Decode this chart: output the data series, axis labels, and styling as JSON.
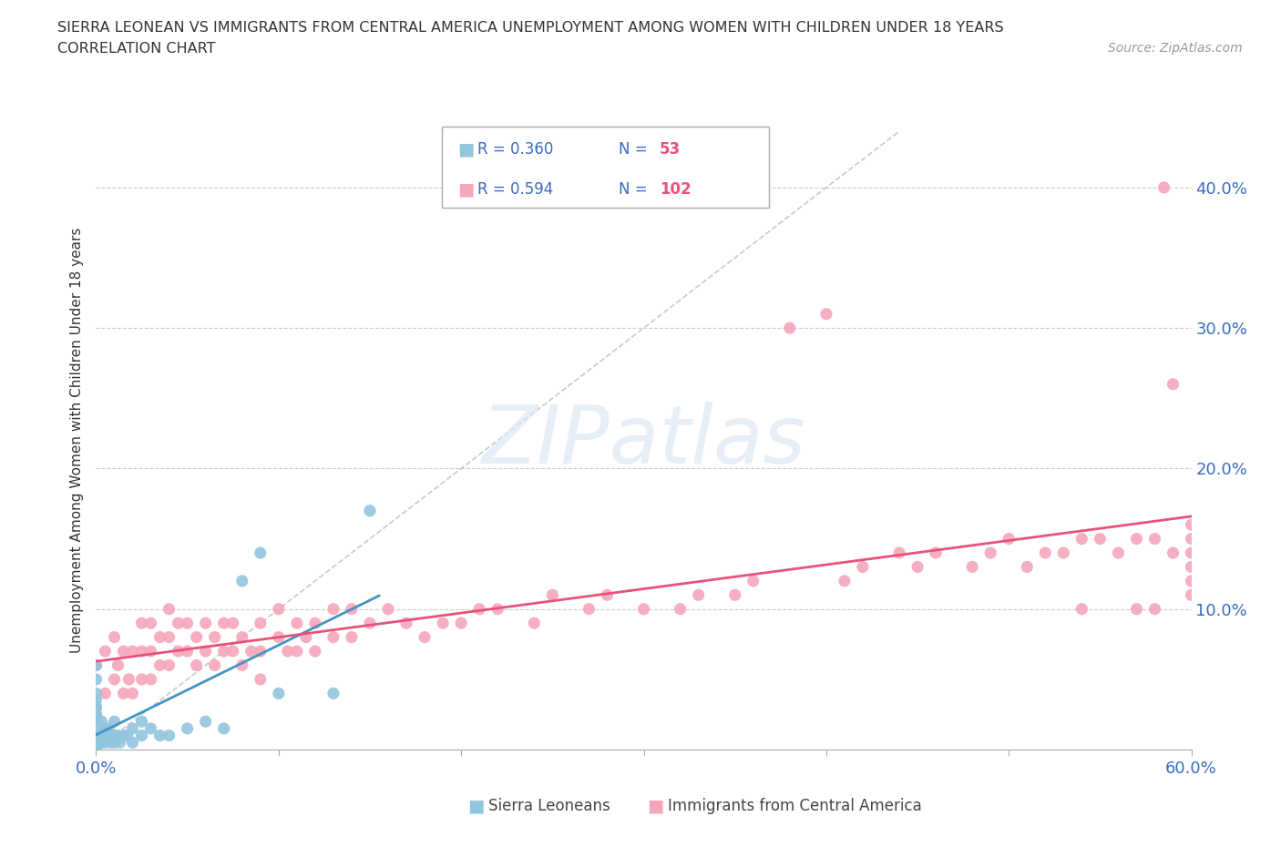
{
  "title_line1": "SIERRA LEONEAN VS IMMIGRANTS FROM CENTRAL AMERICA UNEMPLOYMENT AMONG WOMEN WITH CHILDREN UNDER 18 YEARS",
  "title_line2": "CORRELATION CHART",
  "source": "Source: ZipAtlas.com",
  "ylabel": "Unemployment Among Women with Children Under 18 years",
  "xlim": [
    0.0,
    0.6
  ],
  "ylim": [
    0.0,
    0.44
  ],
  "bg_color": "#ffffff",
  "watermark_text": "ZIPatlas",
  "color_sl": "#92c5de",
  "color_ca": "#f4a7b9",
  "trend_color_sl": "#4393c3",
  "trend_color_ca": "#e8527a",
  "diag_color": "#bbbbbb",
  "legend_r1_color": "#3a6bbf",
  "legend_n1_color": "#e8527a",
  "legend_r2_color": "#3a6bbf",
  "legend_n2_color": "#e8527a",
  "sl_x": [
    0.0,
    0.0,
    0.0,
    0.0,
    0.0,
    0.0,
    0.0,
    0.0,
    0.0,
    0.0,
    0.0,
    0.0,
    0.0,
    0.0,
    0.0,
    0.0,
    0.0,
    0.0,
    0.001,
    0.001,
    0.002,
    0.002,
    0.003,
    0.003,
    0.003,
    0.005,
    0.005,
    0.007,
    0.007,
    0.008,
    0.009,
    0.01,
    0.01,
    0.01,
    0.012,
    0.013,
    0.015,
    0.017,
    0.02,
    0.02,
    0.025,
    0.025,
    0.03,
    0.035,
    0.04,
    0.05,
    0.06,
    0.07,
    0.08,
    0.09,
    0.1,
    0.13,
    0.15
  ],
  "sl_y": [
    0.0,
    0.0,
    0.005,
    0.005,
    0.01,
    0.01,
    0.015,
    0.015,
    0.02,
    0.02,
    0.025,
    0.025,
    0.03,
    0.03,
    0.035,
    0.04,
    0.05,
    0.06,
    0.005,
    0.01,
    0.005,
    0.015,
    0.005,
    0.01,
    0.02,
    0.005,
    0.015,
    0.01,
    0.015,
    0.005,
    0.01,
    0.005,
    0.01,
    0.02,
    0.01,
    0.005,
    0.01,
    0.01,
    0.005,
    0.015,
    0.01,
    0.02,
    0.015,
    0.01,
    0.01,
    0.015,
    0.02,
    0.015,
    0.12,
    0.14,
    0.04,
    0.04,
    0.17
  ],
  "ca_x": [
    0.0,
    0.0,
    0.005,
    0.005,
    0.01,
    0.01,
    0.012,
    0.015,
    0.015,
    0.018,
    0.02,
    0.02,
    0.025,
    0.025,
    0.025,
    0.03,
    0.03,
    0.03,
    0.035,
    0.035,
    0.04,
    0.04,
    0.04,
    0.045,
    0.045,
    0.05,
    0.05,
    0.055,
    0.055,
    0.06,
    0.06,
    0.065,
    0.065,
    0.07,
    0.07,
    0.075,
    0.075,
    0.08,
    0.08,
    0.085,
    0.09,
    0.09,
    0.09,
    0.1,
    0.1,
    0.105,
    0.11,
    0.11,
    0.115,
    0.12,
    0.12,
    0.13,
    0.13,
    0.14,
    0.14,
    0.15,
    0.16,
    0.17,
    0.18,
    0.19,
    0.2,
    0.21,
    0.22,
    0.24,
    0.25,
    0.27,
    0.28,
    0.3,
    0.32,
    0.33,
    0.35,
    0.36,
    0.38,
    0.4,
    0.41,
    0.42,
    0.44,
    0.45,
    0.46,
    0.48,
    0.49,
    0.5,
    0.51,
    0.52,
    0.53,
    0.54,
    0.54,
    0.55,
    0.56,
    0.57,
    0.57,
    0.58,
    0.58,
    0.59,
    0.59,
    0.6,
    0.6,
    0.6,
    0.6,
    0.6,
    0.6,
    0.585
  ],
  "ca_y": [
    0.03,
    0.06,
    0.04,
    0.07,
    0.05,
    0.08,
    0.06,
    0.04,
    0.07,
    0.05,
    0.04,
    0.07,
    0.05,
    0.07,
    0.09,
    0.05,
    0.07,
    0.09,
    0.06,
    0.08,
    0.06,
    0.08,
    0.1,
    0.07,
    0.09,
    0.07,
    0.09,
    0.06,
    0.08,
    0.07,
    0.09,
    0.06,
    0.08,
    0.07,
    0.09,
    0.07,
    0.09,
    0.06,
    0.08,
    0.07,
    0.07,
    0.09,
    0.05,
    0.08,
    0.1,
    0.07,
    0.07,
    0.09,
    0.08,
    0.07,
    0.09,
    0.08,
    0.1,
    0.08,
    0.1,
    0.09,
    0.1,
    0.09,
    0.08,
    0.09,
    0.09,
    0.1,
    0.1,
    0.09,
    0.11,
    0.1,
    0.11,
    0.1,
    0.1,
    0.11,
    0.11,
    0.12,
    0.3,
    0.31,
    0.12,
    0.13,
    0.14,
    0.13,
    0.14,
    0.13,
    0.14,
    0.15,
    0.13,
    0.14,
    0.14,
    0.15,
    0.1,
    0.15,
    0.14,
    0.15,
    0.1,
    0.15,
    0.1,
    0.14,
    0.26,
    0.15,
    0.16,
    0.11,
    0.13,
    0.14,
    0.12,
    0.4
  ]
}
